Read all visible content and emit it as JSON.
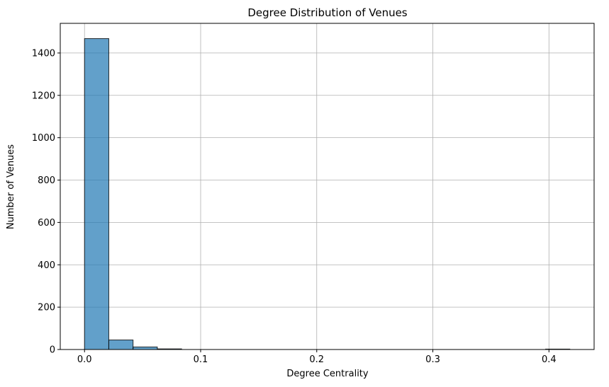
{
  "chart_data": {
    "type": "bar",
    "title": "Degree Distribution of Venues",
    "xlabel": "Degree Centrality",
    "ylabel": "Number of Venues",
    "xlim": [
      -0.0209,
      0.4389
    ],
    "ylim": [
      0,
      1540
    ],
    "xticks": [
      0.0,
      0.1,
      0.2,
      0.3,
      0.4
    ],
    "xtick_labels": [
      "0.0",
      "0.1",
      "0.2",
      "0.3",
      "0.4"
    ],
    "yticks": [
      0,
      200,
      400,
      600,
      800,
      1000,
      1200,
      1400
    ],
    "ytick_labels": [
      "0",
      "200",
      "400",
      "600",
      "800",
      "1000",
      "1200",
      "1400"
    ],
    "grid": true,
    "bar_color": "#1f77b4",
    "bar_opacity": 0.7,
    "edge_color": "#000000",
    "bins": [
      {
        "x0": 0.0,
        "x1": 0.0209,
        "count": 1468
      },
      {
        "x0": 0.0209,
        "x1": 0.0418,
        "count": 45
      },
      {
        "x0": 0.0418,
        "x1": 0.0627,
        "count": 12
      },
      {
        "x0": 0.0627,
        "x1": 0.0836,
        "count": 3
      },
      {
        "x0": 0.0836,
        "x1": 0.1045,
        "count": 0
      },
      {
        "x0": 0.1045,
        "x1": 0.1254,
        "count": 0
      },
      {
        "x0": 0.1254,
        "x1": 0.1463,
        "count": 0
      },
      {
        "x0": 0.1463,
        "x1": 0.1672,
        "count": 0
      },
      {
        "x0": 0.1672,
        "x1": 0.1881,
        "count": 0
      },
      {
        "x0": 0.1881,
        "x1": 0.209,
        "count": 0
      },
      {
        "x0": 0.209,
        "x1": 0.2299,
        "count": 0
      },
      {
        "x0": 0.2299,
        "x1": 0.2508,
        "count": 0
      },
      {
        "x0": 0.2508,
        "x1": 0.2717,
        "count": 0
      },
      {
        "x0": 0.2717,
        "x1": 0.2926,
        "count": 0
      },
      {
        "x0": 0.2926,
        "x1": 0.3135,
        "count": 0
      },
      {
        "x0": 0.3135,
        "x1": 0.3344,
        "count": 0
      },
      {
        "x0": 0.3344,
        "x1": 0.3553,
        "count": 0
      },
      {
        "x0": 0.3553,
        "x1": 0.3762,
        "count": 0
      },
      {
        "x0": 0.3762,
        "x1": 0.3971,
        "count": 0
      },
      {
        "x0": 0.3971,
        "x1": 0.418,
        "count": 2
      }
    ]
  }
}
